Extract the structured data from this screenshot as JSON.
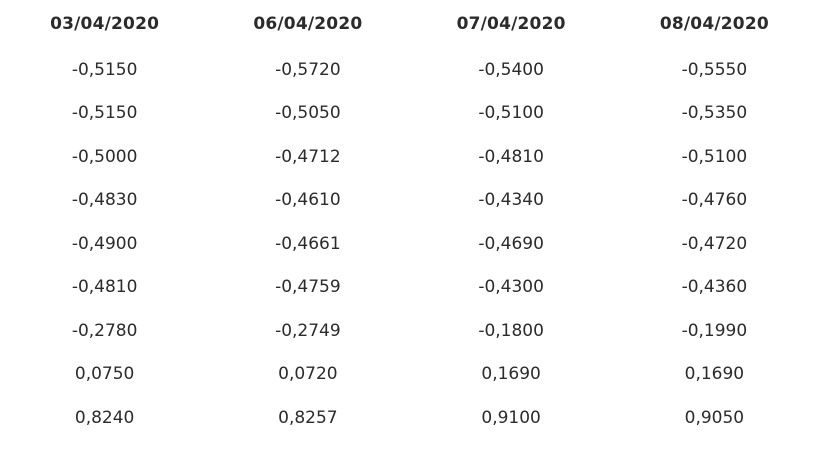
{
  "table": {
    "headers": [
      "03/04/2020",
      "06/04/2020",
      "07/04/2020",
      "08/04/2020"
    ],
    "rows": [
      [
        "-0,5150",
        "-0,5720",
        "-0,5400",
        "-0,5550"
      ],
      [
        "-0,5150",
        "-0,5050",
        "-0,5100",
        "-0,5350"
      ],
      [
        "-0,5000",
        "-0,4712",
        "-0,4810",
        "-0,5100"
      ],
      [
        "-0,4830",
        "-0,4610",
        "-0,4340",
        "-0,4760"
      ],
      [
        "-0,4900",
        "-0,4661",
        "-0,4690",
        "-0,4720"
      ],
      [
        "-0,4810",
        "-0,4759",
        "-0,4300",
        "-0,4360"
      ],
      [
        "-0,2780",
        "-0,2749",
        "-0,1800",
        "-0,1990"
      ],
      [
        "0,0750",
        "0,0720",
        "0,1690",
        "0,1690"
      ],
      [
        "0,8240",
        "0,8257",
        "0,9100",
        "0,9050"
      ]
    ]
  }
}
